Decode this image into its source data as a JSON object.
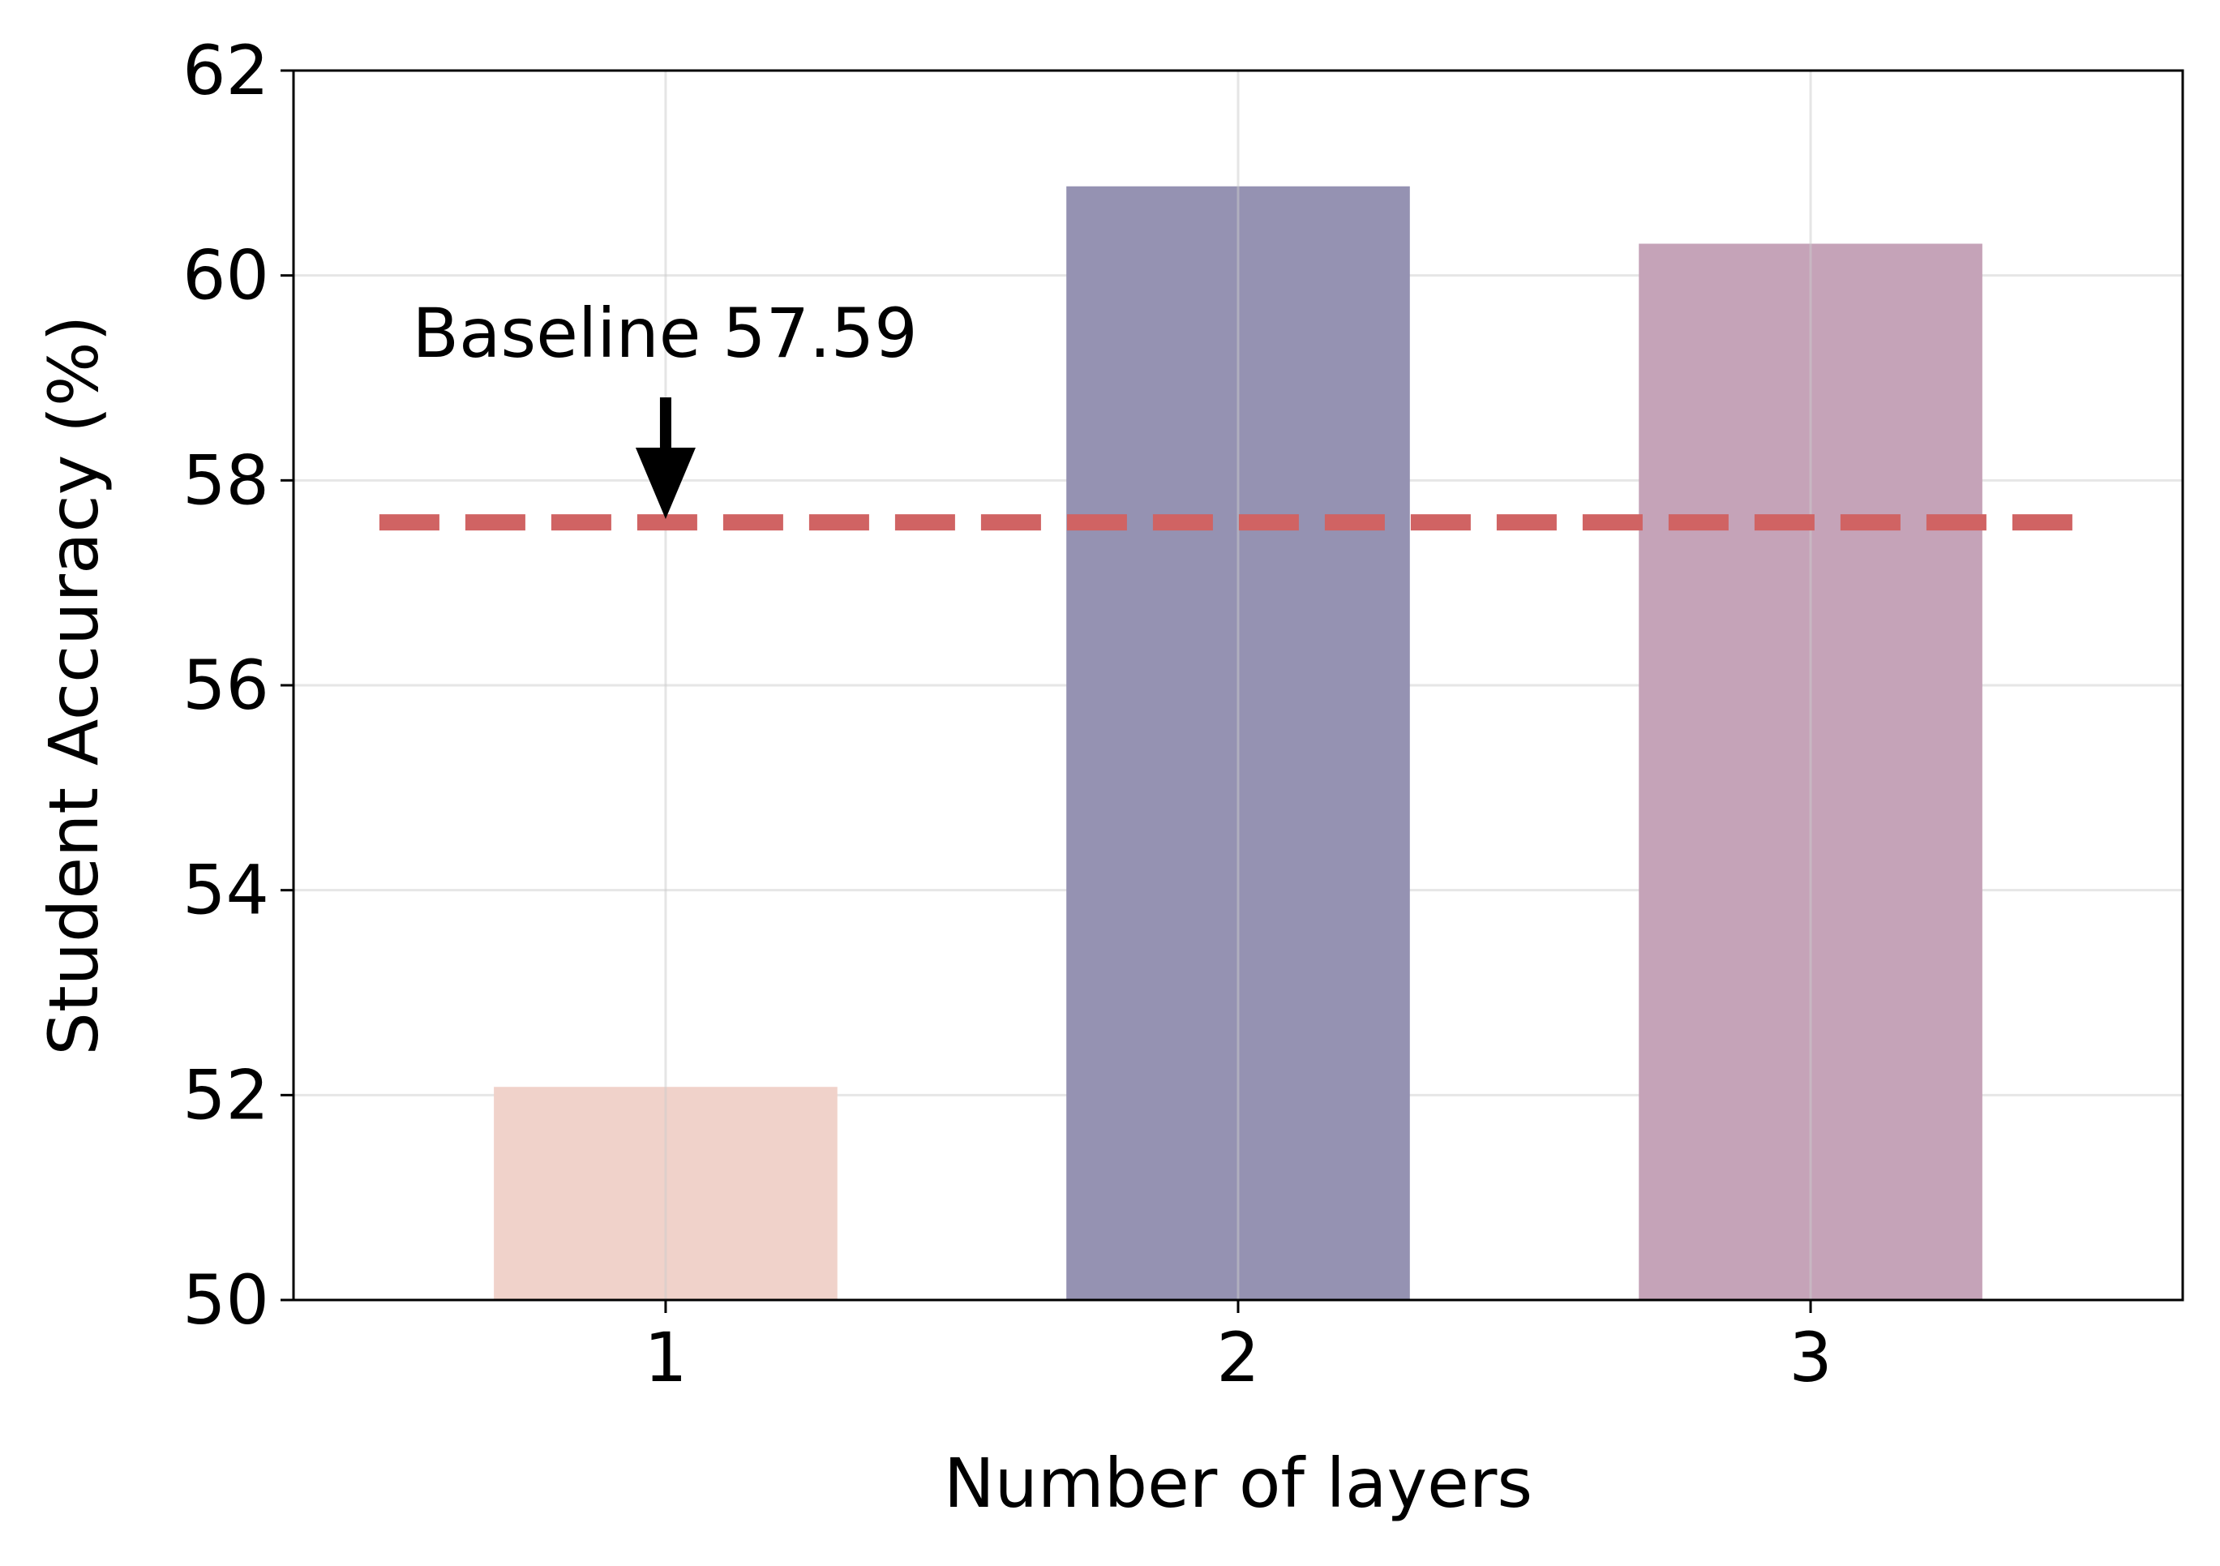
{
  "chart_data": {
    "type": "bar",
    "title": "",
    "xlabel": "Number of layers",
    "ylabel": "Student Accuracy (%)",
    "categories": [
      "1",
      "2",
      "3"
    ],
    "values": [
      52.08,
      60.87,
      60.31
    ],
    "bar_colors": [
      "#f0d2ca",
      "#9592b2",
      "#c5a3b8"
    ],
    "ylim": [
      50,
      62
    ],
    "yticks": [
      "50",
      "52",
      "54",
      "56",
      "58",
      "60",
      "62"
    ],
    "grid": true,
    "baseline": {
      "value": 57.59,
      "label": "Baseline 57.59",
      "color": "#d06363",
      "style": "dashed"
    }
  }
}
